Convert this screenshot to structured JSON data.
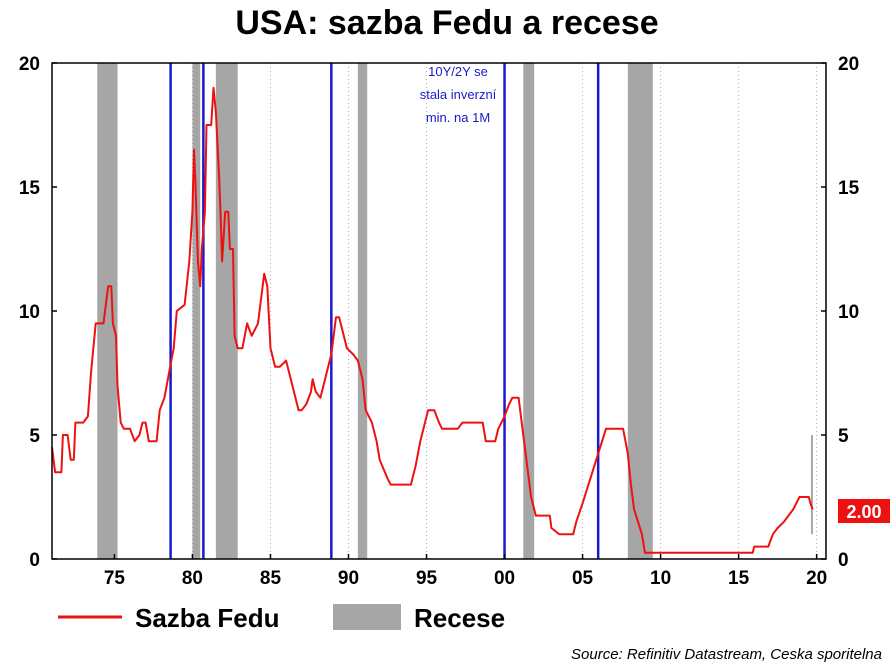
{
  "chart_data": {
    "type": "line",
    "title": "USA: sazba Fedu a recese",
    "xlabel": "",
    "ylabel": "",
    "xlim": [
      1971,
      2020.6
    ],
    "ylim": [
      0,
      20
    ],
    "x_ticks": [
      {
        "year": 1975,
        "label": "75"
      },
      {
        "year": 1980,
        "label": "80"
      },
      {
        "year": 1985,
        "label": "85"
      },
      {
        "year": 1990,
        "label": "90"
      },
      {
        "year": 1995,
        "label": "95"
      },
      {
        "year": 2000,
        "label": "00"
      },
      {
        "year": 2005,
        "label": "05"
      },
      {
        "year": 2010,
        "label": "10"
      },
      {
        "year": 2015,
        "label": "15"
      },
      {
        "year": 2020,
        "label": "20"
      }
    ],
    "y_ticks": [
      0,
      5,
      10,
      15,
      20
    ],
    "grid": "vertical dotted",
    "legend_position": "bottom",
    "colors": {
      "fed_rate": "#ee1111",
      "recession": "#a6a6a6",
      "inversion": "#1a1acc",
      "badge": "#ee1111"
    },
    "series": [
      {
        "name": "Sazba Fedu",
        "points": [
          [
            1971.0,
            4.5
          ],
          [
            1971.2,
            3.5
          ],
          [
            1971.6,
            3.5
          ],
          [
            1971.7,
            5.0
          ],
          [
            1972.0,
            5.0
          ],
          [
            1972.2,
            4.0
          ],
          [
            1972.4,
            4.0
          ],
          [
            1972.5,
            5.5
          ],
          [
            1973.0,
            5.5
          ],
          [
            1973.3,
            5.75
          ],
          [
            1973.5,
            7.5
          ],
          [
            1973.8,
            9.5
          ],
          [
            1974.3,
            9.5
          ],
          [
            1974.5,
            10.5
          ],
          [
            1974.6,
            11.0
          ],
          [
            1974.8,
            11.0
          ],
          [
            1974.9,
            9.5
          ],
          [
            1975.1,
            9.0
          ],
          [
            1975.2,
            7.0
          ],
          [
            1975.4,
            5.5
          ],
          [
            1975.6,
            5.25
          ],
          [
            1976.0,
            5.25
          ],
          [
            1976.3,
            4.75
          ],
          [
            1976.6,
            5.0
          ],
          [
            1976.8,
            5.5
          ],
          [
            1977.0,
            5.5
          ],
          [
            1977.2,
            4.75
          ],
          [
            1977.7,
            4.75
          ],
          [
            1977.9,
            6.0
          ],
          [
            1978.2,
            6.5
          ],
          [
            1978.5,
            7.5
          ],
          [
            1978.8,
            8.5
          ],
          [
            1979.0,
            10.0
          ],
          [
            1979.5,
            10.25
          ],
          [
            1979.8,
            12.0
          ],
          [
            1980.0,
            14.0
          ],
          [
            1980.1,
            16.5
          ],
          [
            1980.2,
            15.0
          ],
          [
            1980.35,
            12.0
          ],
          [
            1980.5,
            11.0
          ],
          [
            1980.6,
            12.5
          ],
          [
            1980.8,
            14.0
          ],
          [
            1980.9,
            17.5
          ],
          [
            1981.2,
            17.5
          ],
          [
            1981.35,
            19.0
          ],
          [
            1981.5,
            18.0
          ],
          [
            1981.7,
            15.5
          ],
          [
            1981.8,
            14.0
          ],
          [
            1981.9,
            12.0
          ],
          [
            1982.1,
            14.0
          ],
          [
            1982.3,
            14.0
          ],
          [
            1982.4,
            12.5
          ],
          [
            1982.6,
            12.5
          ],
          [
            1982.7,
            9.0
          ],
          [
            1982.9,
            8.5
          ],
          [
            1983.2,
            8.5
          ],
          [
            1983.5,
            9.5
          ],
          [
            1983.8,
            9.0
          ],
          [
            1984.2,
            9.5
          ],
          [
            1984.6,
            11.5
          ],
          [
            1984.8,
            11.0
          ],
          [
            1985.0,
            8.5
          ],
          [
            1985.3,
            7.75
          ],
          [
            1985.6,
            7.75
          ],
          [
            1986.0,
            8.0
          ],
          [
            1986.3,
            7.25
          ],
          [
            1986.5,
            6.75
          ],
          [
            1986.8,
            6.0
          ],
          [
            1987.0,
            6.0
          ],
          [
            1987.3,
            6.25
          ],
          [
            1987.6,
            6.75
          ],
          [
            1987.7,
            7.25
          ],
          [
            1987.9,
            6.75
          ],
          [
            1988.2,
            6.5
          ],
          [
            1988.6,
            7.5
          ],
          [
            1988.9,
            8.25
          ],
          [
            1989.2,
            9.75
          ],
          [
            1989.4,
            9.75
          ],
          [
            1989.7,
            9.0
          ],
          [
            1989.9,
            8.5
          ],
          [
            1990.3,
            8.25
          ],
          [
            1990.6,
            8.0
          ],
          [
            1990.9,
            7.25
          ],
          [
            1991.1,
            6.0
          ],
          [
            1991.5,
            5.5
          ],
          [
            1991.8,
            4.75
          ],
          [
            1992.0,
            4.0
          ],
          [
            1992.5,
            3.25
          ],
          [
            1992.7,
            3.0
          ],
          [
            1993.0,
            3.0
          ],
          [
            1994.0,
            3.0
          ],
          [
            1994.3,
            3.75
          ],
          [
            1994.6,
            4.75
          ],
          [
            1994.9,
            5.5
          ],
          [
            1995.1,
            6.0
          ],
          [
            1995.5,
            6.0
          ],
          [
            1995.8,
            5.5
          ],
          [
            1996.0,
            5.25
          ],
          [
            1997.0,
            5.25
          ],
          [
            1997.3,
            5.5
          ],
          [
            1998.6,
            5.5
          ],
          [
            1998.8,
            4.75
          ],
          [
            1999.4,
            4.75
          ],
          [
            1999.6,
            5.25
          ],
          [
            2000.0,
            5.75
          ],
          [
            2000.3,
            6.25
          ],
          [
            2000.5,
            6.5
          ],
          [
            2000.9,
            6.5
          ],
          [
            2001.1,
            5.5
          ],
          [
            2001.4,
            4.0
          ],
          [
            2001.7,
            2.5
          ],
          [
            2002.0,
            1.75
          ],
          [
            2002.9,
            1.75
          ],
          [
            2003.0,
            1.25
          ],
          [
            2003.5,
            1.0
          ],
          [
            2004.4,
            1.0
          ],
          [
            2004.6,
            1.5
          ],
          [
            2005.0,
            2.25
          ],
          [
            2005.5,
            3.25
          ],
          [
            2006.0,
            4.25
          ],
          [
            2006.5,
            5.25
          ],
          [
            2007.6,
            5.25
          ],
          [
            2007.9,
            4.25
          ],
          [
            2008.1,
            3.0
          ],
          [
            2008.3,
            2.0
          ],
          [
            2008.8,
            1.0
          ],
          [
            2009.0,
            0.25
          ],
          [
            2015.9,
            0.25
          ],
          [
            2016.0,
            0.5
          ],
          [
            2016.9,
            0.5
          ],
          [
            2017.2,
            1.0
          ],
          [
            2017.5,
            1.25
          ],
          [
            2017.9,
            1.5
          ],
          [
            2018.2,
            1.75
          ],
          [
            2018.5,
            2.0
          ],
          [
            2018.9,
            2.5
          ],
          [
            2019.5,
            2.5
          ],
          [
            2019.6,
            2.25
          ],
          [
            2019.75,
            2.0
          ]
        ]
      }
    ],
    "recessions": {
      "name": "Recese",
      "periods": [
        [
          1973.9,
          1975.2
        ],
        [
          1980.0,
          1980.5
        ],
        [
          1981.5,
          1982.9
        ],
        [
          1990.6,
          1991.2
        ],
        [
          2001.2,
          2001.9
        ],
        [
          2007.9,
          2009.5
        ]
      ]
    },
    "inversion_lines": [
      1978.6,
      1980.7,
      1988.9,
      2000.0,
      2006.0
    ],
    "current_value_range": [
      1.0,
      5.0
    ],
    "current_value_x": 2019.7,
    "annotation": [
      "10Y/2Y se",
      "stala inverzní",
      "min. na 1M"
    ],
    "badge": "2.00",
    "legend": {
      "line_label": "Sazba Fedu",
      "bar_label": "Recese"
    },
    "source": "Source: Refinitiv Datastream, Ceska sporitelna"
  }
}
